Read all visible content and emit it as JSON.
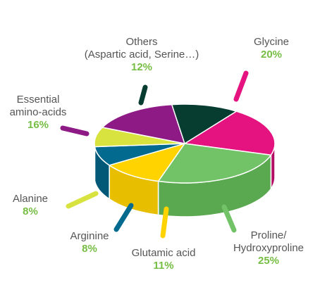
{
  "colors": {
    "label_text": "#555555",
    "value_text": "#76bd43"
  },
  "chart_data": {
    "type": "pie",
    "style": "3d-exploded-labels",
    "slices": [
      {
        "key": "glycine",
        "lines": [
          "Glycine"
        ],
        "value": 20,
        "label": "20%",
        "color": "#e5137f",
        "side": "#b30e63"
      },
      {
        "key": "proline",
        "lines": [
          "Proline/",
          "Hydroxyproline"
        ],
        "value": 25,
        "label": "25%",
        "color": "#72c368",
        "side": "#5aa84f"
      },
      {
        "key": "glutamic",
        "lines": [
          "Glutamic acid"
        ],
        "value": 11,
        "label": "11%",
        "color": "#fed300",
        "side": "#e7bf00"
      },
      {
        "key": "arginine",
        "lines": [
          "Arginine"
        ],
        "value": 8,
        "label": "8%",
        "color": "#026a8e",
        "side": "#015877"
      },
      {
        "key": "alanine",
        "lines": [
          "Alanine"
        ],
        "value": 8,
        "label": "8%",
        "color": "#d9e33f",
        "side": "#c2cb30"
      },
      {
        "key": "essential",
        "lines": [
          "Essential",
          "amino-acids"
        ],
        "value": 16,
        "label": "16%",
        "color": "#8e1a86",
        "side": "#74146d"
      },
      {
        "key": "others",
        "lines": [
          "Others",
          "(Aspartic acid, Serine…)"
        ],
        "value": 12,
        "label": "12%",
        "color": "#073d31",
        "side": "#052c23"
      }
    ]
  }
}
